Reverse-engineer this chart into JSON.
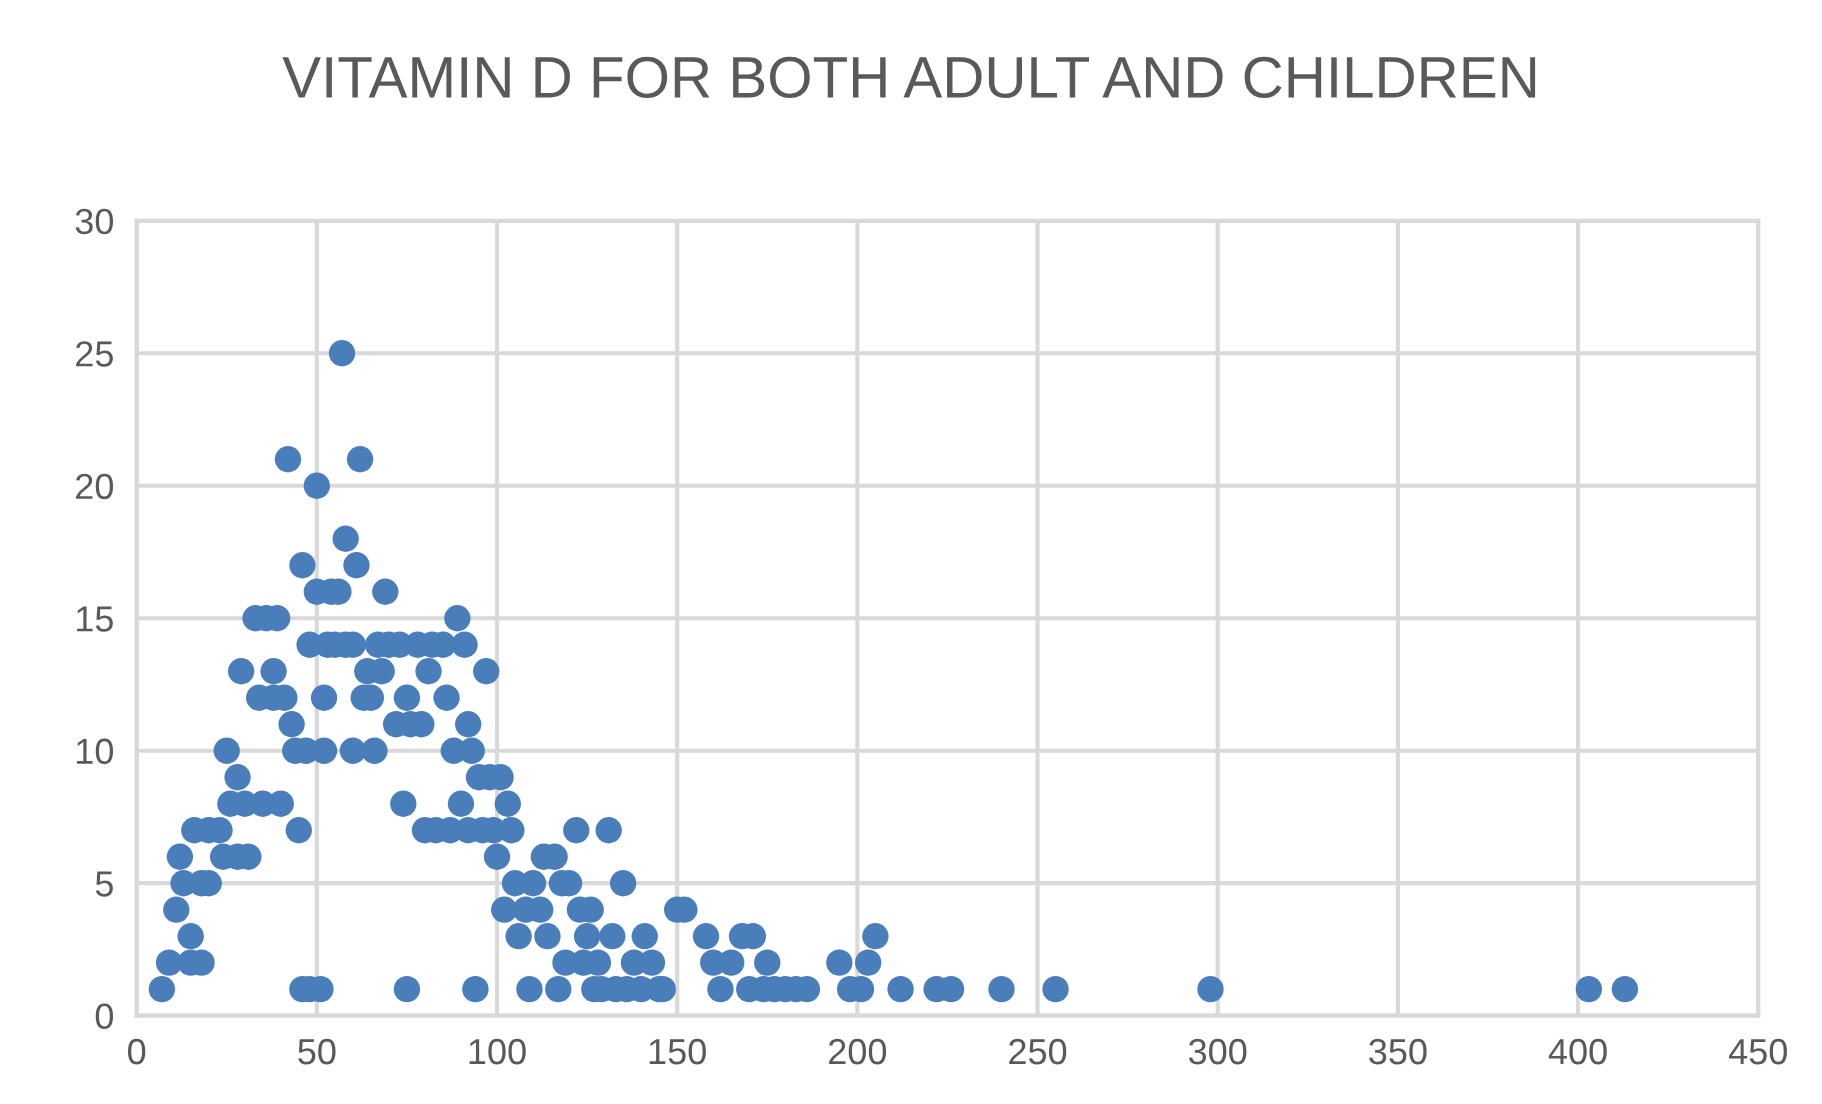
{
  "chart_data": {
    "type": "scatter",
    "title": "VITAMIN D FOR BOTH ADULT AND CHILDREN",
    "series": [
      {
        "color": "#4a7ebb",
        "x": [
          7,
          9,
          11,
          12,
          13,
          15,
          15,
          16,
          18,
          18,
          20,
          20,
          23,
          24,
          25,
          26,
          28,
          28,
          29,
          30,
          31,
          33,
          34,
          35,
          36,
          38,
          38,
          39,
          40,
          41,
          42,
          43,
          44,
          45,
          46,
          46,
          47,
          48,
          48,
          50,
          50,
          51,
          52,
          52,
          53,
          54,
          55,
          56,
          57,
          58,
          58,
          60,
          60,
          61,
          62,
          63,
          64,
          65,
          66,
          67,
          68,
          69,
          70,
          72,
          73,
          74,
          75,
          75,
          76,
          78,
          79,
          80,
          81,
          82,
          83,
          85,
          86,
          87,
          88,
          89,
          90,
          91,
          92,
          92,
          93,
          94,
          95,
          96,
          97,
          98,
          99,
          100,
          101,
          102,
          103,
          104,
          105,
          106,
          108,
          109,
          110,
          112,
          113,
          114,
          116,
          117,
          118,
          119,
          120,
          122,
          123,
          124,
          125,
          126,
          127,
          128,
          129,
          131,
          132,
          133,
          135,
          136,
          138,
          140,
          141,
          143,
          145,
          146,
          150,
          152,
          158,
          160,
          162,
          165,
          168,
          170,
          171,
          174,
          175,
          177,
          180,
          183,
          186,
          195,
          198,
          201,
          203,
          205,
          212,
          222,
          226,
          240,
          255,
          298,
          403,
          413
        ],
        "values": [
          1,
          2,
          4,
          6,
          5,
          3,
          2,
          7,
          2,
          5,
          5,
          7,
          7,
          6,
          10,
          8,
          9,
          6,
          13,
          8,
          6,
          15,
          12,
          8,
          15,
          13,
          12,
          15,
          8,
          12,
          21,
          11,
          10,
          7,
          17,
          1,
          10,
          14,
          1,
          16,
          20,
          1,
          12,
          10,
          14,
          16,
          14,
          16,
          25,
          14,
          18,
          14,
          10,
          17,
          21,
          12,
          13,
          12,
          10,
          14,
          13,
          16,
          14,
          11,
          14,
          8,
          12,
          1,
          11,
          14,
          11,
          7,
          13,
          14,
          7,
          14,
          12,
          7,
          10,
          15,
          8,
          14,
          11,
          7,
          10,
          1,
          9,
          7,
          13,
          9,
          7,
          6,
          9,
          4,
          8,
          7,
          5,
          3,
          4,
          1,
          5,
          4,
          6,
          3,
          6,
          1,
          5,
          2,
          5,
          7,
          4,
          2,
          3,
          4,
          1,
          2,
          1,
          7,
          3,
          1,
          5,
          1,
          2,
          1,
          3,
          2,
          1,
          1,
          4,
          4,
          3,
          2,
          1,
          2,
          3,
          1,
          3,
          1,
          2,
          1,
          1,
          1,
          1,
          2,
          1,
          1,
          2,
          3,
          1,
          1,
          1,
          1,
          1,
          1,
          1,
          1
        ]
      }
    ],
    "xlim": [
      0,
      450
    ],
    "xticks": [
      0,
      50,
      100,
      150,
      200,
      250,
      300,
      350,
      400,
      450
    ],
    "ylim": [
      0,
      30
    ],
    "yticks": [
      0,
      5,
      10,
      15,
      20,
      25,
      30
    ],
    "grid": true,
    "marker": "circle"
  }
}
